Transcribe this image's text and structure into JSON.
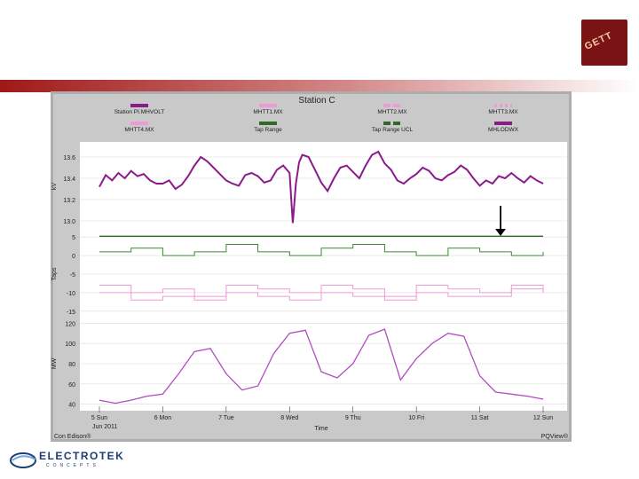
{
  "slide": {
    "logo_text": "GETT",
    "footer": {
      "brand": "ELECTROTEK",
      "sub": "CONCEPTS"
    }
  },
  "colors": {
    "purple": "#8b1a8b",
    "pink": "#ee9ad6",
    "green": "#3a8a30",
    "darkgreen": "#2d6b27",
    "panel": "#c9c9c9",
    "frame": "#adadad"
  },
  "chart_data": {
    "type": "line",
    "title": "Station C",
    "legend": [
      {
        "name": "Station PI.MHVOLT",
        "color": "#8b1a8b",
        "style": "solid"
      },
      {
        "name": "MHTT1.MX",
        "color": "#ee9ad6",
        "style": "solid"
      },
      {
        "name": "MHTT2.MX",
        "color": "#ee9ad6",
        "style": "dashed"
      },
      {
        "name": "MHTT3.MX",
        "color": "#ee9ad6",
        "style": "dotted"
      },
      {
        "name": "MHTT4.MX",
        "color": "#ee9ad6",
        "style": "solid"
      },
      {
        "name": "Tap Range",
        "color": "#2d6b27",
        "style": "solid"
      },
      {
        "name": "Tap Range UCL",
        "color": "#2d6b27",
        "style": "dashed"
      },
      {
        "name": "MHLODWX",
        "color": "#8b1a8b",
        "style": "solid"
      }
    ],
    "x_ticks": [
      "5 Sun",
      "6 Mon",
      "7 Tue",
      "8 Wed",
      "9 Thu",
      "10 Fri",
      "11 Sat",
      "12 Sun"
    ],
    "x_sublabel": "Jun 2011",
    "xlabel": "Time",
    "footer_left": "Con Edison®",
    "footer_right": "PQView®",
    "panels": [
      {
        "ylabel": "kV",
        "yticks": [
          "13.6",
          "13.4",
          "13.2",
          "13.0"
        ],
        "ylim": [
          12.95,
          13.7
        ],
        "series": [
          {
            "name": "Station PI.MHVOLT",
            "color": "#8b1a8b",
            "x": [
              0,
              0.1,
              0.2,
              0.3,
              0.4,
              0.5,
              0.6,
              0.7,
              0.8,
              0.9,
              1,
              1.1,
              1.2,
              1.3,
              1.4,
              1.5,
              1.6,
              1.7,
              1.8,
              1.9,
              2,
              2.1,
              2.2,
              2.3,
              2.4,
              2.5,
              2.6,
              2.7,
              2.8,
              2.9,
              3,
              3.05,
              3.1,
              3.15,
              3.2,
              3.3,
              3.4,
              3.5,
              3.6,
              3.7,
              3.8,
              3.9,
              4,
              4.1,
              4.2,
              4.3,
              4.4,
              4.5,
              4.6,
              4.7,
              4.8,
              4.9,
              5,
              5.1,
              5.2,
              5.3,
              5.4,
              5.5,
              5.6,
              5.7,
              5.8,
              5.9,
              6,
              6.1,
              6.2,
              6.3,
              6.4,
              6.5,
              6.6,
              6.7,
              6.8,
              6.9,
              7
            ],
            "y": [
              13.32,
              13.43,
              13.38,
              13.45,
              13.4,
              13.47,
              13.42,
              13.44,
              13.38,
              13.35,
              13.35,
              13.38,
              13.3,
              13.34,
              13.42,
              13.52,
              13.6,
              13.56,
              13.5,
              13.44,
              13.38,
              13.35,
              13.33,
              13.43,
              13.45,
              13.42,
              13.36,
              13.38,
              13.48,
              13.52,
              13.45,
              12.98,
              13.35,
              13.55,
              13.62,
              13.6,
              13.48,
              13.36,
              13.28,
              13.4,
              13.5,
              13.52,
              13.46,
              13.4,
              13.52,
              13.62,
              13.65,
              13.54,
              13.48,
              13.38,
              13.35,
              13.4,
              13.44,
              13.5,
              13.47,
              13.4,
              13.38,
              13.43,
              13.46,
              13.52,
              13.48,
              13.4,
              13.33,
              13.38,
              13.35,
              13.42,
              13.4,
              13.45,
              13.4,
              13.36,
              13.42,
              13.38,
              13.35
            ]
          }
        ]
      },
      {
        "ylabel": "Taps",
        "yticks": [
          "5",
          "0",
          "-5",
          "-10",
          "-15"
        ],
        "ylim": [
          -16,
          6
        ],
        "series": [
          {
            "name": "Tap Range UCL",
            "color": "#2d6b27",
            "x": [
              0,
              7
            ],
            "y": [
              5.2,
              5.2
            ]
          },
          {
            "name": "MHTT2.MX",
            "color": "#3a8a30",
            "x": [
              0,
              0.5,
              1,
              1.5,
              2,
              2.5,
              3,
              3.5,
              4,
              4.5,
              5,
              5.5,
              6,
              6.5,
              7
            ],
            "y": [
              1,
              2,
              0,
              1,
              3,
              1,
              0,
              2,
              3,
              1,
              0,
              2,
              1,
              0,
              1
            ]
          },
          {
            "name": "MHTT1.MX",
            "color": "#ee9ad6",
            "x": [
              0,
              0.5,
              1,
              1.5,
              2,
              2.5,
              3,
              3.5,
              4,
              4.5,
              5,
              5.5,
              6,
              6.5,
              7
            ],
            "y": [
              -8,
              -10,
              -9,
              -11,
              -8,
              -9,
              -10,
              -8,
              -9,
              -11,
              -8,
              -9,
              -10,
              -8,
              -9
            ]
          },
          {
            "name": "MHTT4.MX",
            "color": "#ee9ad6",
            "x": [
              0,
              0.5,
              1,
              1.5,
              2,
              2.5,
              3,
              3.5,
              4,
              4.5,
              5,
              5.5,
              6,
              6.5,
              7
            ],
            "y": [
              -10,
              -12,
              -11,
              -12,
              -10,
              -11,
              -12,
              -10,
              -11,
              -12,
              -10,
              -11,
              -11,
              -9,
              -10
            ]
          }
        ]
      },
      {
        "ylabel": "MW",
        "yticks": [
          "120",
          "100",
          "80",
          "60",
          "40"
        ],
        "ylim": [
          38,
          122
        ],
        "series": [
          {
            "name": "MHLODWX",
            "color": "#b04cc0",
            "x": [
              0,
              0.25,
              0.5,
              0.75,
              1,
              1.25,
              1.5,
              1.75,
              2,
              2.25,
              2.5,
              2.75,
              3,
              3.25,
              3.5,
              3.75,
              4,
              4.25,
              4.5,
              4.75,
              5,
              5.25,
              5.5,
              5.75,
              6,
              6.25,
              6.5,
              6.75,
              7
            ],
            "y": [
              44,
              41,
              44,
              48,
              50,
              70,
              92,
              95,
              70,
              54,
              58,
              90,
              110,
              113,
              72,
              66,
              80,
              108,
              114,
              64,
              85,
              100,
              110,
              107,
              68,
              52,
              50,
              48,
              45
            ]
          }
        ]
      }
    ]
  }
}
